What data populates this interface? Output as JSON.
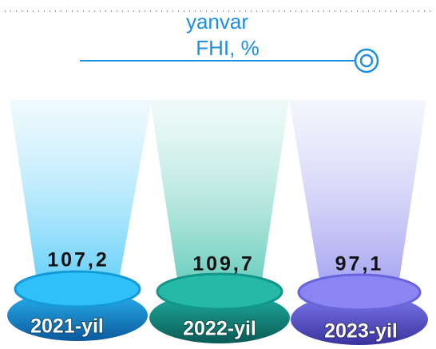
{
  "header": {
    "title": "yanvar",
    "subtitle": "FHI, %"
  },
  "items": [
    {
      "label": "2021-yil",
      "value": "107,2"
    },
    {
      "label": "2022-yil",
      "value": "109,7"
    },
    {
      "label": "2023-yil",
      "value": "97,1"
    }
  ]
}
